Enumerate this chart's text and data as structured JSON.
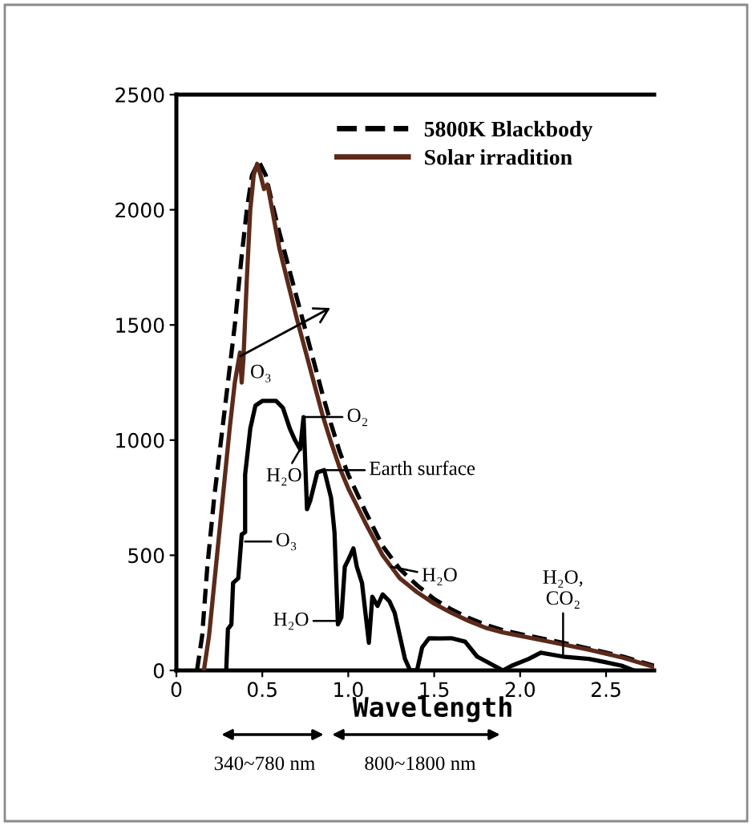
{
  "chart_data": {
    "type": "line",
    "xlabel": "Wavelength",
    "xlim": [
      0,
      2.78
    ],
    "xticks": [
      0,
      0.5,
      {
        "value": 1,
        "label": "1.0"
      },
      1.5,
      {
        "value": 2,
        "label": "2.0"
      },
      2.5
    ],
    "ylim": [
      0,
      2500
    ],
    "yticks": [
      0,
      500,
      1000,
      1500,
      2000,
      2500
    ],
    "legend": "top right",
    "marker": "none",
    "series": [
      {
        "name": "5800K Blackbody",
        "color": "#000000",
        "line_style": "dashed",
        "x": [
          0.12,
          0.15,
          0.18,
          0.22,
          0.26,
          0.3,
          0.34,
          0.38,
          0.41,
          0.44,
          0.48,
          0.52,
          0.56,
          0.6,
          0.65,
          0.7,
          0.75,
          0.8,
          0.85,
          0.9,
          0.95,
          1.0,
          1.1,
          1.2,
          1.3,
          1.4,
          1.5,
          1.6,
          1.7,
          1.8,
          1.9,
          2.0,
          2.2,
          2.4,
          2.6,
          2.78
        ],
        "values": [
          0,
          150,
          450,
          750,
          1000,
          1250,
          1500,
          1800,
          2000,
          2150,
          2210,
          2150,
          2020,
          1900,
          1760,
          1620,
          1480,
          1340,
          1200,
          1070,
          950,
          850,
          690,
          540,
          440,
          370,
          310,
          265,
          228,
          198,
          175,
          158,
          128,
          95,
          60,
          20
        ]
      },
      {
        "name": "Solar irradition",
        "color": "#5c2a1a",
        "line_style": "solid",
        "x": [
          0.16,
          0.19,
          0.23,
          0.27,
          0.31,
          0.34,
          0.37,
          0.38,
          0.39,
          0.41,
          0.43,
          0.45,
          0.47,
          0.49,
          0.51,
          0.53,
          0.56,
          0.6,
          0.65,
          0.7,
          0.75,
          0.8,
          0.85,
          0.9,
          0.95,
          1.0,
          1.1,
          1.2,
          1.25,
          1.3,
          1.4,
          1.5,
          1.6,
          1.7,
          1.8,
          1.9,
          2.0,
          2.2,
          2.4,
          2.6,
          2.78
        ],
        "values": [
          0,
          150,
          450,
          750,
          1050,
          1250,
          1380,
          1250,
          1350,
          1700,
          2000,
          2150,
          2200,
          2150,
          2090,
          2110,
          1990,
          1830,
          1680,
          1530,
          1390,
          1250,
          1110,
          990,
          880,
          790,
          640,
          500,
          450,
          400,
          340,
          290,
          250,
          215,
          185,
          165,
          150,
          120,
          90,
          55,
          15
        ]
      },
      {
        "color": "#000000",
        "line_style": "solid",
        "x": [
          0.29,
          0.3,
          0.32,
          0.33,
          0.36,
          0.38,
          0.4,
          0.4,
          0.43,
          0.46,
          0.5,
          0.58,
          0.62,
          0.66,
          0.69,
          0.72,
          0.74,
          0.76,
          0.78,
          0.82,
          0.86,
          0.9,
          0.92,
          0.94,
          0.96,
          0.98,
          1.0,
          1.03,
          1.05,
          1.08,
          1.1,
          1.12,
          1.14,
          1.17,
          1.2,
          1.24,
          1.27,
          1.3,
          1.33,
          1.36,
          1.4,
          1.43,
          1.47,
          1.53,
          1.6,
          1.68,
          1.75,
          1.8,
          1.9,
          1.95,
          2.05,
          2.12,
          2.25,
          2.4,
          2.5,
          2.59,
          2.66
        ],
        "values": [
          0,
          180,
          200,
          380,
          400,
          590,
          600,
          850,
          1050,
          1150,
          1170,
          1170,
          1140,
          1050,
          1000,
          960,
          1100,
          700,
          740,
          860,
          870,
          750,
          600,
          200,
          230,
          450,
          480,
          530,
          450,
          380,
          250,
          120,
          320,
          280,
          330,
          300,
          250,
          150,
          50,
          0,
          0,
          100,
          140,
          139,
          140,
          125,
          60,
          40,
          0,
          20,
          50,
          77,
          60,
          50,
          35,
          21,
          0
        ]
      }
    ],
    "annotations": [
      {
        "text": "O₃",
        "x": 0.37,
        "y": 1360
      },
      {
        "text": "O₂",
        "x": 0.74,
        "y": 1100
      },
      {
        "text": "H₂O",
        "x": 0.72,
        "y": 960
      },
      {
        "text": "Earth surface",
        "x": 0.86,
        "y": 870
      },
      {
        "text": "O₃",
        "x": 0.4,
        "y": 560
      },
      {
        "text": "H₂O",
        "x": 0.94,
        "y": 215
      },
      {
        "text": "H₂O",
        "x": 1.25,
        "y": 450
      },
      {
        "text": "H₂O,\nCO₂",
        "x": 2.25,
        "y": 60
      },
      "340~780 nm",
      "800~1800 nm"
    ]
  }
}
